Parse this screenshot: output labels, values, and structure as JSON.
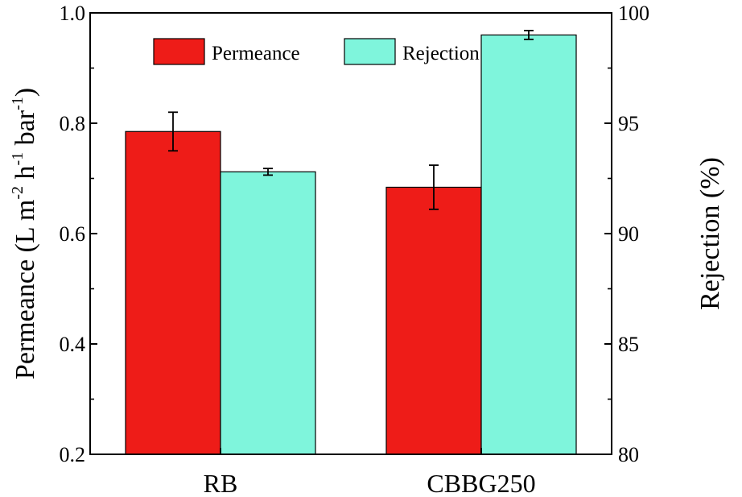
{
  "chart_data": {
    "type": "bar",
    "categories": [
      "RB",
      "CBBG250"
    ],
    "series": [
      {
        "name": "Permeance",
        "axis": "left",
        "color": "#ee1c18",
        "values": [
          0.785,
          0.684
        ],
        "errors": [
          0.035,
          0.04
        ]
      },
      {
        "name": "Rejection",
        "axis": "right",
        "color": "#7ff5dc",
        "values": [
          92.8,
          99.0
        ],
        "errors": [
          0.15,
          0.2
        ]
      }
    ],
    "legend_labels": [
      "Permeance",
      "Rejection"
    ],
    "legend_position": "top",
    "y_left": {
      "label_prefix": "Permeance (L m",
      "label_parts": [
        "Permeance (L m",
        "-2",
        " h",
        "-1",
        " bar",
        "-1",
        ")"
      ],
      "ylim": [
        0.2,
        1.0
      ],
      "ticks": [
        "0.2",
        "0.4",
        "0.6",
        "0.8",
        "1.0"
      ]
    },
    "y_right": {
      "label": "Rejection (%)",
      "ylim": [
        80,
        100
      ],
      "ticks": [
        "80",
        "85",
        "90",
        "95",
        "100"
      ]
    },
    "grid": false
  }
}
